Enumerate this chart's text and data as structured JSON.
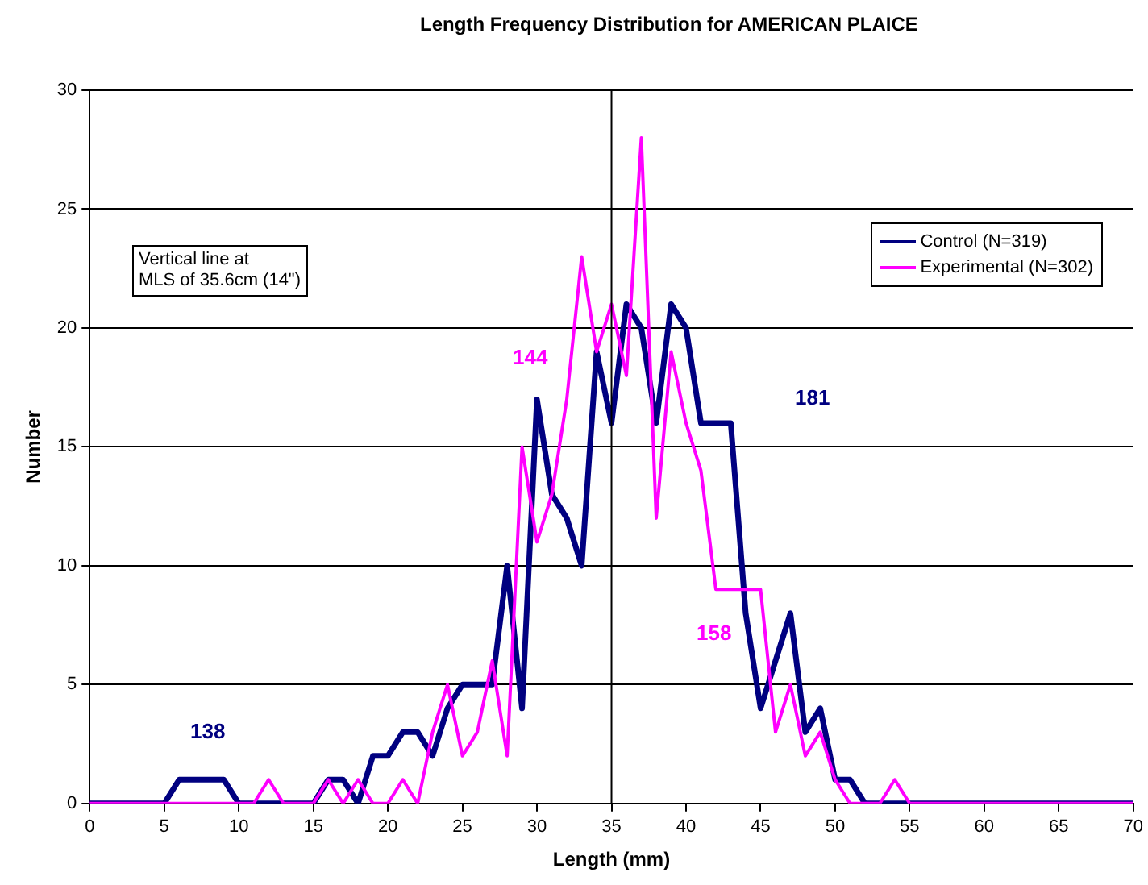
{
  "chart_data": {
    "type": "line",
    "title": "Length Frequency Distribution for AMERICAN PLAICE",
    "xlabel": "Length (mm)",
    "ylabel": "Number",
    "x": [
      0,
      1,
      2,
      3,
      4,
      5,
      6,
      7,
      8,
      9,
      10,
      11,
      12,
      13,
      14,
      15,
      16,
      17,
      18,
      19,
      20,
      21,
      22,
      23,
      24,
      25,
      26,
      27,
      28,
      29,
      30,
      31,
      32,
      33,
      34,
      35,
      36,
      37,
      38,
      39,
      40,
      41,
      42,
      43,
      44,
      45,
      46,
      47,
      48,
      49,
      50,
      51,
      52,
      53,
      54,
      55,
      56,
      57,
      58,
      59,
      60,
      61,
      62,
      63,
      64,
      65,
      66,
      67,
      68,
      69,
      70
    ],
    "series": [
      {
        "name": "Control (N=319)",
        "color": "#000080",
        "values": [
          0,
          0,
          0,
          0,
          0,
          0,
          1,
          1,
          1,
          1,
          0,
          0,
          0,
          0,
          0,
          0,
          1,
          1,
          0,
          2,
          2,
          3,
          3,
          2,
          4,
          5,
          5,
          5,
          10,
          4,
          17,
          13,
          12,
          10,
          19,
          16,
          21,
          20,
          16,
          21,
          20,
          16,
          16,
          16,
          8,
          4,
          6,
          8,
          3,
          4,
          1,
          1,
          0,
          0,
          0,
          0,
          0,
          0,
          0,
          0,
          0,
          0,
          0,
          0,
          0,
          0,
          0,
          0,
          0,
          0,
          0
        ]
      },
      {
        "name": "Experimental (N=302)",
        "color": "#ff00ff",
        "values": [
          0,
          0,
          0,
          0,
          0,
          0,
          0,
          0,
          0,
          0,
          0,
          0,
          1,
          0,
          0,
          0,
          1,
          0,
          1,
          0,
          0,
          1,
          0,
          3,
          5,
          2,
          3,
          6,
          2,
          15,
          11,
          13,
          17,
          23,
          19,
          21,
          18,
          28,
          12,
          19,
          16,
          14,
          9,
          9,
          9,
          9,
          3,
          5,
          2,
          3,
          1,
          0,
          0,
          0,
          1,
          0,
          0,
          0,
          0,
          0,
          0,
          0,
          0,
          0,
          0,
          0,
          0,
          0,
          0,
          0,
          0
        ]
      }
    ],
    "xlim": [
      0,
      70
    ],
    "xticks": [
      0,
      5,
      10,
      15,
      20,
      25,
      30,
      35,
      40,
      45,
      50,
      55,
      60,
      65,
      70
    ],
    "ylim": [
      0,
      30
    ],
    "yticks": [
      0,
      5,
      10,
      15,
      20,
      25,
      30
    ],
    "ref_lines": [
      {
        "axis": "x",
        "value": 35,
        "color": "#000000"
      }
    ],
    "annotations": [
      "Vertical line at\nMLS of 35.6cm (14\")",
      "138",
      "144",
      "181",
      "158"
    ],
    "grid": "y",
    "legend": "top right",
    "marker": "none",
    "line_style": "solid"
  }
}
